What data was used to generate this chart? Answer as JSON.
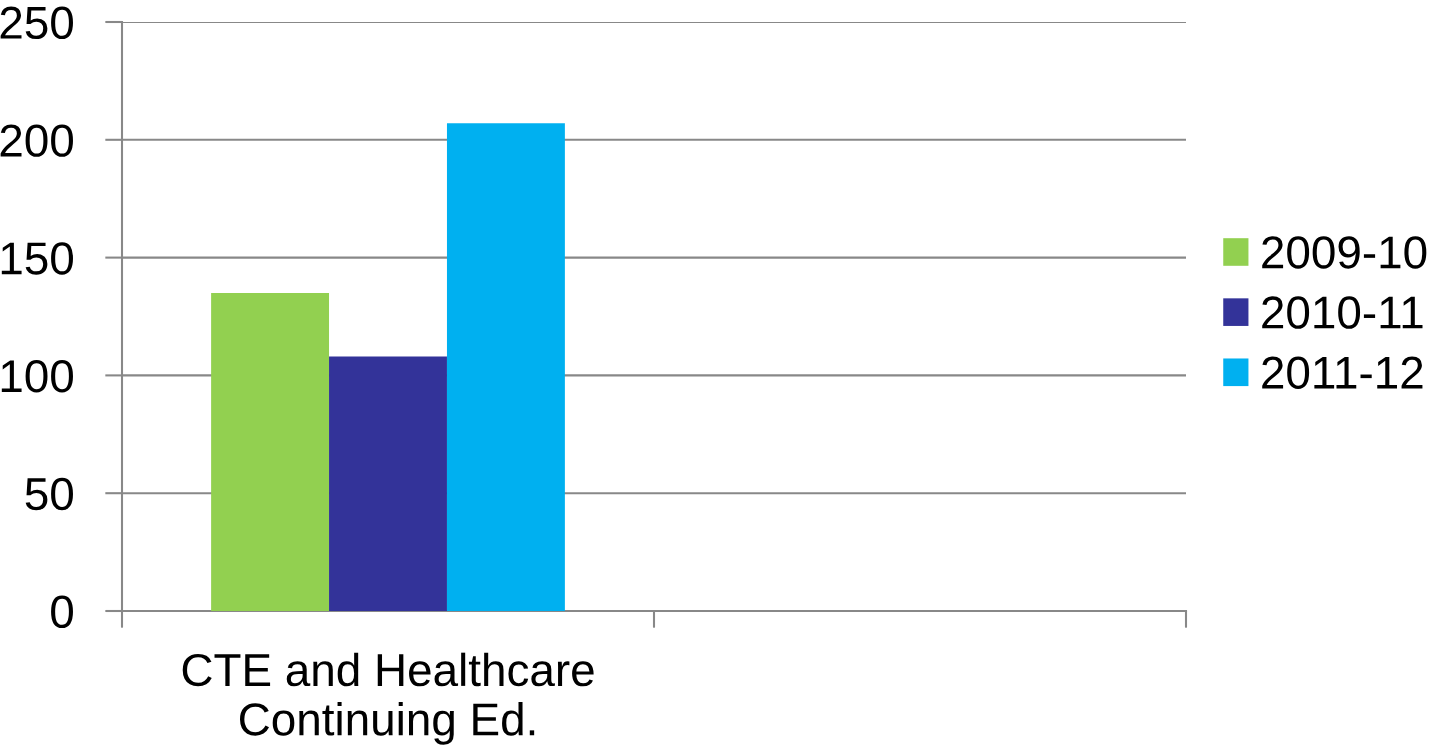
{
  "chart_data": {
    "type": "bar",
    "categories": [
      "CTE and Healthcare\nContinuing Ed.",
      null
    ],
    "series": [
      {
        "name": "2009-10",
        "color": "#92d050",
        "values": [
          135,
          null
        ]
      },
      {
        "name": "2010-11",
        "color": "#333399",
        "values": [
          108,
          null
        ]
      },
      {
        "name": "2011-12",
        "color": "#00b0f0",
        "values": [
          207,
          null
        ]
      }
    ],
    "ylim": [
      0,
      250
    ],
    "yticks": [
      0,
      50,
      100,
      150,
      200,
      250
    ],
    "grid": "y",
    "legend": "right"
  }
}
